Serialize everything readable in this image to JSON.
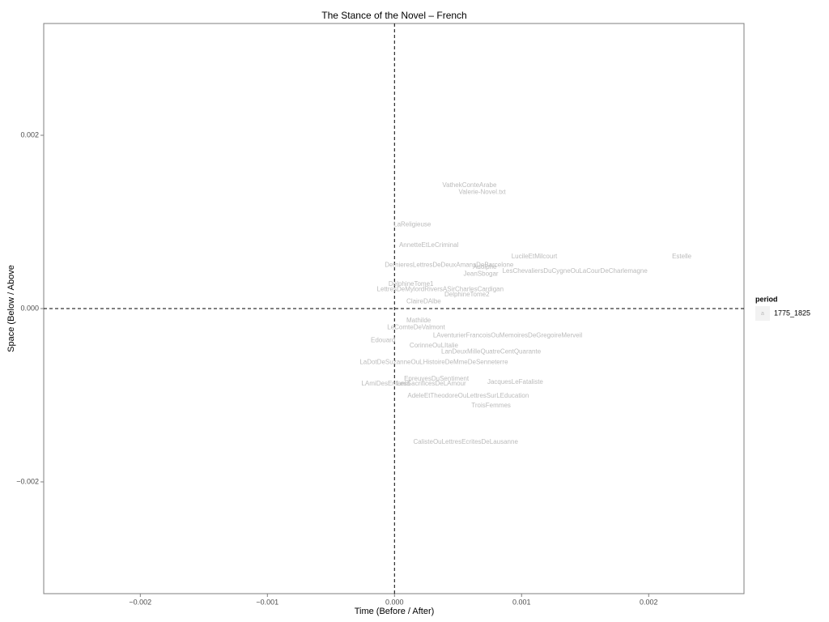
{
  "chart_data": {
    "type": "text-scatter",
    "title": "The Stance of the Novel – French",
    "x_label": "Time (Before / After)",
    "y_label": "Space (Below / Above",
    "xlim": [
      -0.00276,
      0.00275
    ],
    "ylim": [
      -0.00329,
      0.00329
    ],
    "xticks": [
      {
        "value": -0.002,
        "label": "−0.002"
      },
      {
        "value": -0.001,
        "label": "−0.001"
      },
      {
        "value": 0,
        "label": "0.000"
      },
      0.001,
      0.002
    ],
    "yticks": [
      {
        "value": -0.002,
        "label": "−0.002"
      },
      {
        "value": 0,
        "label": "0.000"
      },
      0.002
    ],
    "hline": 0,
    "vline": 0,
    "legend_title": "period",
    "legend_key_glyph": "a",
    "legend_position": "right",
    "series": [
      {
        "name": "1775_1825",
        "color": "#bbbbbb",
        "labels": [
          "VathekConteArabe",
          "Valerie-Novel.txt",
          "LaReligieuse",
          "AnnetteEtLeCriminal",
          "LucileEtMilcourt",
          "Estelle",
          "DernieresLettresDeDeuxAmansDeBarcelone",
          "Adolphe",
          "LesChevaliersDuCygneOuLaCourDeCharlemagne",
          "JeanSbogar",
          "DelphineTome1",
          "LettresDeMylordRiversASirCharlesCardigan",
          "DelphineTome2",
          "ClaireDAlbe",
          "Mathilde",
          "LeComteDeValmont",
          "LAventurierFrancoisOuMemoiresDeGregoireMerveil",
          "Edouard",
          "CorinneOuLItalie",
          "LanDeuxMilleQuatreCentQuarante",
          "LaDotDeSuzanneOuLHistoireDeMmeDeSenneterre",
          "EpreuvesDuSentiment",
          "LAmiDesEnfants",
          "LesSacrificesDeLAmour",
          "JacquesLeFataliste",
          "AdeleEtTheodoreOuLettresSurLEducation",
          "TroisFemmes",
          "CalisteOuLettresEcritesDeLausanne"
        ],
        "x": [
          0.00059,
          0.00069,
          0.00014,
          0.00027,
          0.0011,
          0.00226,
          0.00043,
          0.00071,
          0.00142,
          0.00068,
          0.00013,
          0.00036,
          0.00057,
          0.00023,
          0.00019,
          0.00017,
          0.00089,
          -9e-05,
          0.00031,
          0.00076,
          0.00031,
          0.00033,
          -7e-05,
          0.00029,
          0.00095,
          0.00058,
          0.00076,
          0.00056
        ],
        "y": [
          0.00142,
          0.00134,
          0.00097,
          0.00073,
          0.0006,
          0.0006,
          0.0005,
          0.00048,
          0.00043,
          0.0004,
          0.00028,
          0.00022,
          0.00016,
          8e-05,
          -0.00014,
          -0.00022,
          -0.00031,
          -0.00037,
          -0.00043,
          -0.0005,
          -0.00062,
          -0.00081,
          -0.00087,
          -0.00087,
          -0.00085,
          -0.00101,
          -0.00112,
          -0.00154
        ]
      }
    ]
  }
}
